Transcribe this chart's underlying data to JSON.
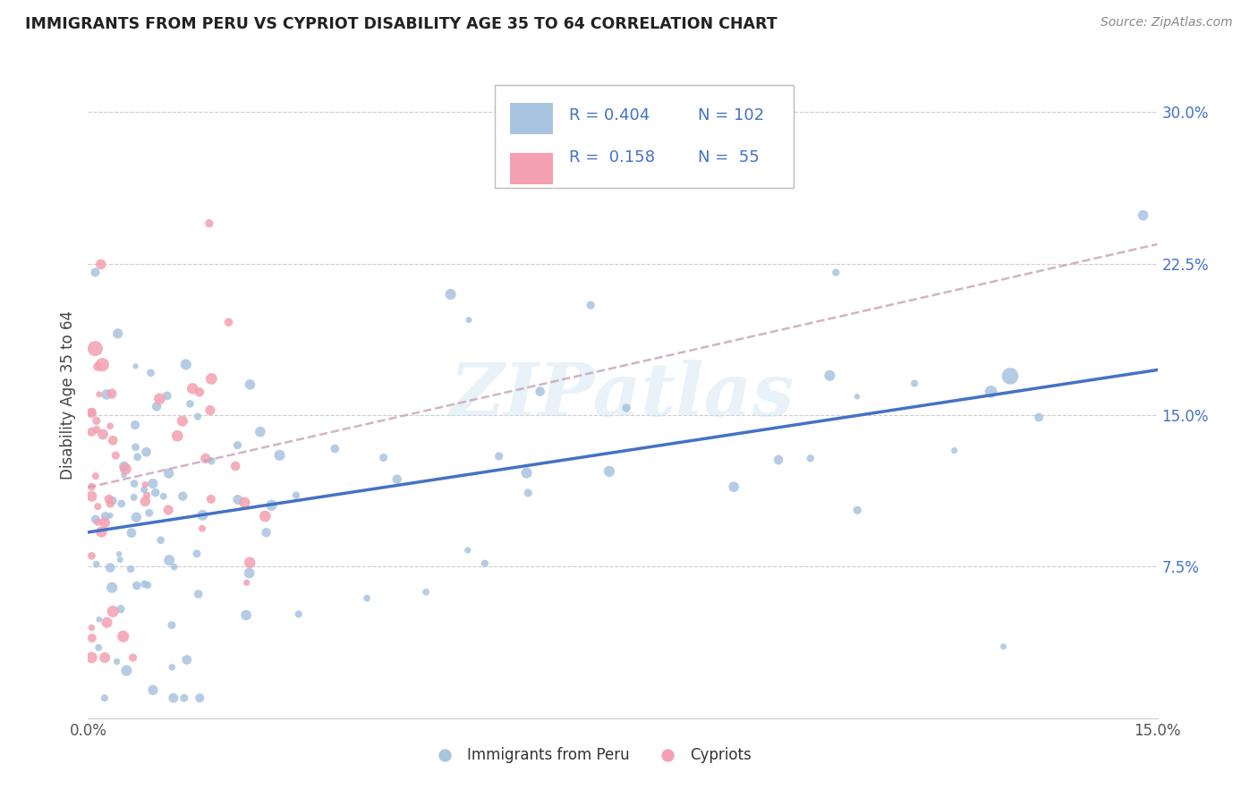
{
  "title": "IMMIGRANTS FROM PERU VS CYPRIOT DISABILITY AGE 35 TO 64 CORRELATION CHART",
  "source": "Source: ZipAtlas.com",
  "ylabel": "Disability Age 35 to 64",
  "xmin": 0.0,
  "xmax": 0.15,
  "ymin": 0.0,
  "ymax": 0.32,
  "xticks": [
    0.0,
    0.03,
    0.06,
    0.09,
    0.12,
    0.15
  ],
  "xticklabels": [
    "0.0%",
    "",
    "",
    "",
    "",
    "15.0%"
  ],
  "yticks_right": [
    0.075,
    0.15,
    0.225,
    0.3
  ],
  "ytick_labels_right": [
    "7.5%",
    "15.0%",
    "22.5%",
    "30.0%"
  ],
  "legend_label1": "Immigrants from Peru",
  "legend_label2": "Cypriots",
  "watermark": "ZIPatlas",
  "peru_color": "#a8c4e0",
  "peru_line_color": "#4472c4",
  "cypriot_color": "#f4a0b0",
  "cypriot_line_color": "#c8a0b8",
  "blue_text_color": "#4472c4",
  "legend_r1": "R = 0.404",
  "legend_n1": "N = 102",
  "legend_r2": "R =  0.158",
  "legend_n2": "N =  55",
  "peru_R": 0.404,
  "peru_N": 102,
  "cypriot_R": 0.158,
  "cypriot_N": 55
}
